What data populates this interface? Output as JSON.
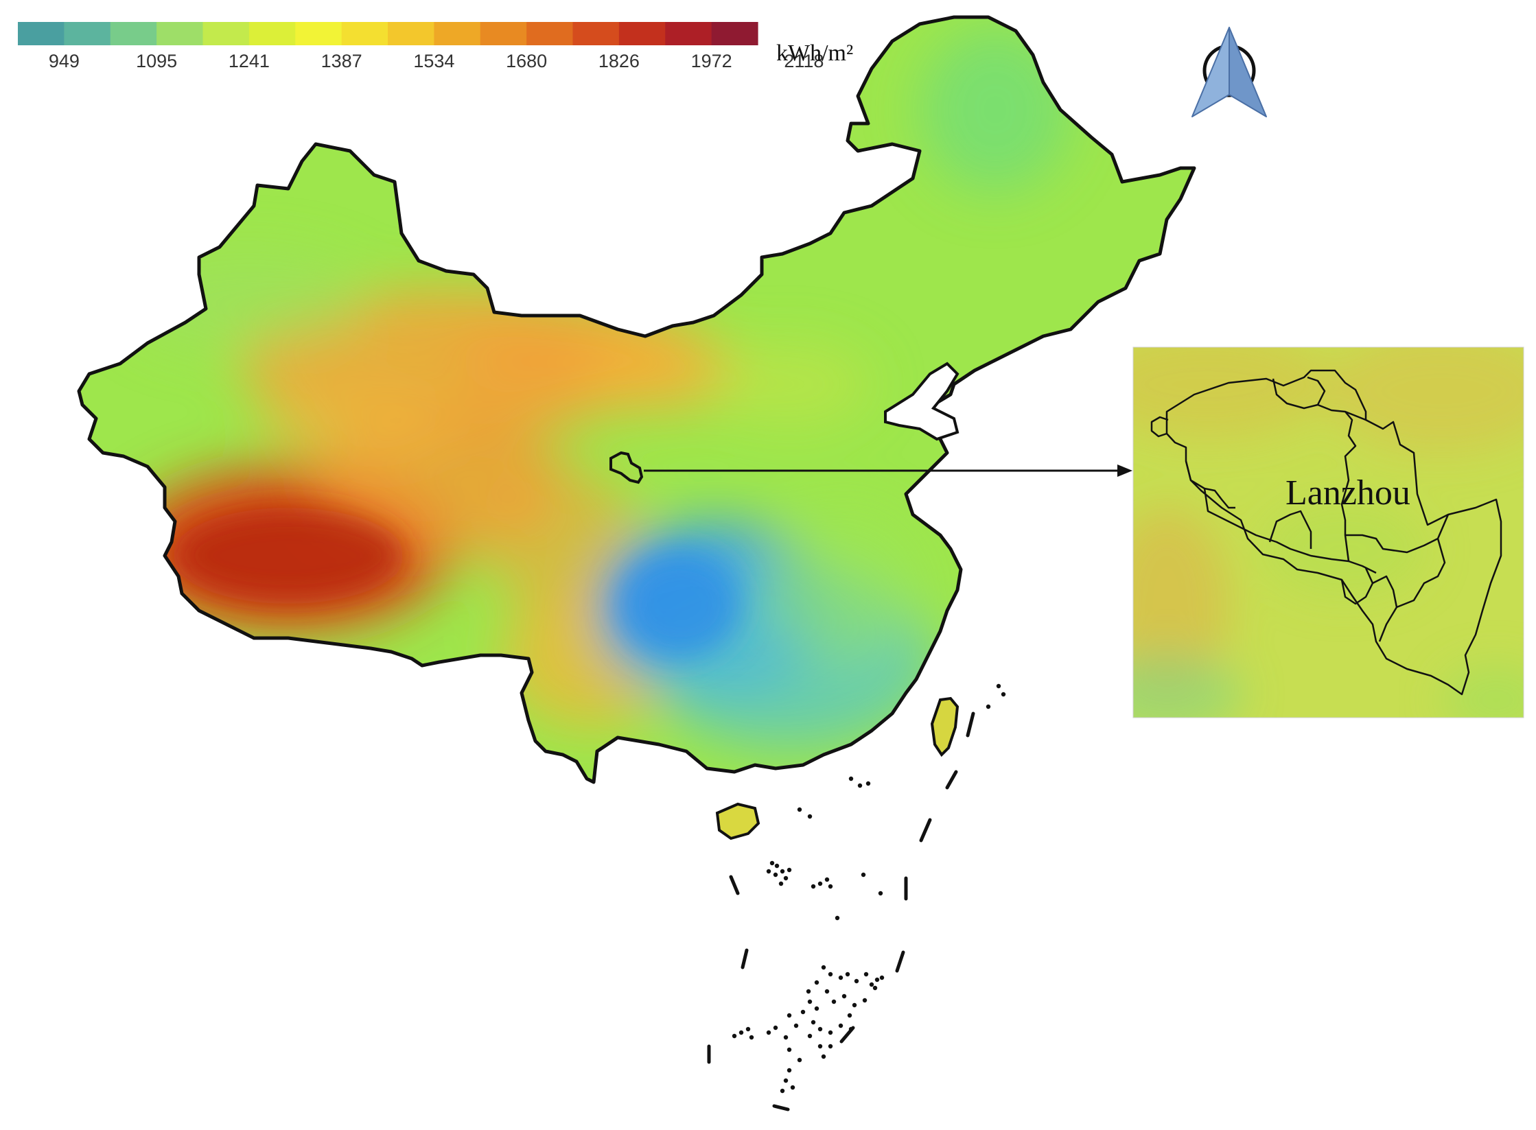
{
  "legend": {
    "unit": "kWh/m²",
    "ticks": [
      "949",
      "1095",
      "1241",
      "1387",
      "1534",
      "1680",
      "1826",
      "1972",
      "2118"
    ],
    "colors": [
      "#4a9fa0",
      "#5cb49e",
      "#78cc8a",
      "#9ede68",
      "#c3ea4c",
      "#dcef38",
      "#f2f336",
      "#f4df30",
      "#f3c72c",
      "#eea826",
      "#e88a22",
      "#e06c1f",
      "#d54c1d",
      "#c3301d",
      "#ad1f26",
      "#8f1a31"
    ]
  },
  "inset": {
    "city_label": "Lanzhou"
  },
  "icons": {
    "north_arrow": "north-arrow-icon"
  },
  "palette": {
    "low": "#2f8fe8",
    "mid_low": "#56d3a0",
    "mid": "#a6e84a",
    "mid_high": "#f2a43a",
    "high": "#c8320f",
    "inset_bg": "#c7de52"
  }
}
